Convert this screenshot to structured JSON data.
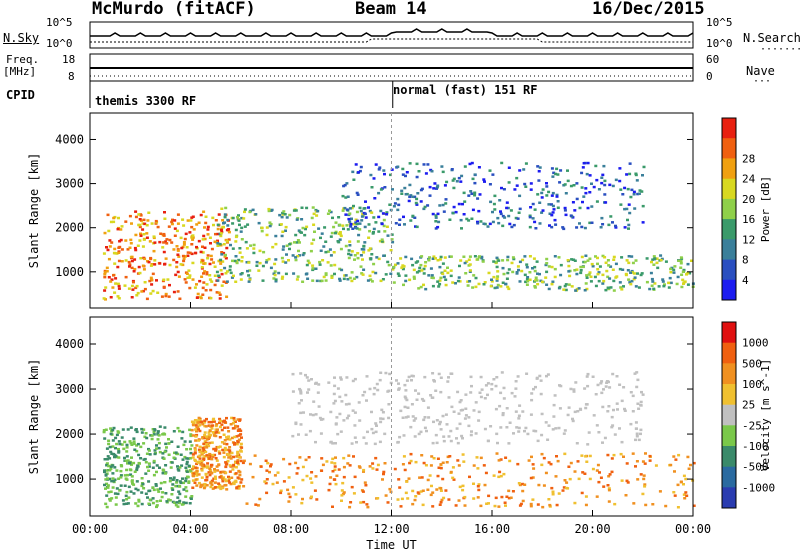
{
  "header": {
    "station": "McMurdo (fitACF)",
    "beam": "Beam 14",
    "date": "16/Dec/2015"
  },
  "status_panels": {
    "noise_left_label": "N.Sky",
    "noise_right_label": "N.Search",
    "noise_left_ticks": [
      "10^5",
      "10^0"
    ],
    "noise_right_ticks": [
      "10^5",
      "10^0"
    ],
    "freq_label_line1": "Freq.",
    "freq_label_line2": "[MHz]",
    "freq_ticks": [
      "18",
      "8"
    ],
    "nave_label": "Nave",
    "nave_ticks": [
      "60",
      "0"
    ],
    "cpid_label": "CPID",
    "cpid_segments": [
      "themis 3300 RF",
      "normal (fast) 151 RF"
    ]
  },
  "chart_data": [
    {
      "type": "heatmap",
      "title": "",
      "quantity": "Power",
      "xlabel": "",
      "ylabel": "Slant Range [km]",
      "xlim_hours": [
        0,
        24
      ],
      "ylim": [
        180,
        4600
      ],
      "y_ticks": [
        1000,
        2000,
        3000,
        4000
      ],
      "colorbar": {
        "label": "Power [dB]",
        "ticks": [
          4,
          8,
          12,
          16,
          20,
          24,
          28
        ],
        "colors": [
          "#1c1cf0",
          "#2a4fc0",
          "#3a7f9a",
          "#3a9a6a",
          "#8fd04a",
          "#d8d820",
          "#f0a010",
          "#f06010",
          "#e82010"
        ]
      },
      "features": [
        {
          "t_start": 0.5,
          "t_end": 5.5,
          "range_km": [
            400,
            2400
          ],
          "level": "high"
        },
        {
          "t_start": 5.0,
          "t_end": 12.0,
          "range_km": [
            800,
            2500
          ],
          "level": "medium"
        },
        {
          "t_start": 12.0,
          "t_end": 24.0,
          "range_km": [
            600,
            1400
          ],
          "level": "medium"
        },
        {
          "t_start": 10.0,
          "t_end": 22.0,
          "range_km": [
            2000,
            3500
          ],
          "level": "low"
        }
      ]
    },
    {
      "type": "heatmap",
      "title": "",
      "quantity": "Velocity",
      "xlabel": "Time UT",
      "ylabel": "Slant Range [km]",
      "xlim_hours": [
        0,
        24
      ],
      "ylim": [
        180,
        4600
      ],
      "y_ticks": [
        1000,
        2000,
        3000,
        4000
      ],
      "x_tick_labels": [
        "00:00",
        "04:00",
        "08:00",
        "12:00",
        "16:00",
        "20:00",
        "00:00"
      ],
      "colorbar": {
        "label": "Velocity [m s^-1]",
        "ticks": [
          1000,
          500,
          100,
          25,
          -25,
          -100,
          -500,
          -1000
        ],
        "colors": [
          "#2a3cb0",
          "#2a6aa0",
          "#3a8a6a",
          "#7ac84a",
          "#c0c0c0",
          "#f0c030",
          "#f09020",
          "#f06010",
          "#e01010"
        ]
      },
      "features": [
        {
          "t_start": 0.5,
          "t_end": 4.0,
          "range_km": [
            400,
            2200
          ],
          "sign": "toward"
        },
        {
          "t_start": 4.0,
          "t_end": 6.0,
          "range_km": [
            800,
            2400
          ],
          "sign": "away"
        },
        {
          "t_start": 6.0,
          "t_end": 24.0,
          "range_km": [
            400,
            1600
          ],
          "sign": "away"
        },
        {
          "t_start": 8.0,
          "t_end": 22.0,
          "range_km": [
            1800,
            3400
          ],
          "sign": "near-zero"
        }
      ]
    }
  ]
}
